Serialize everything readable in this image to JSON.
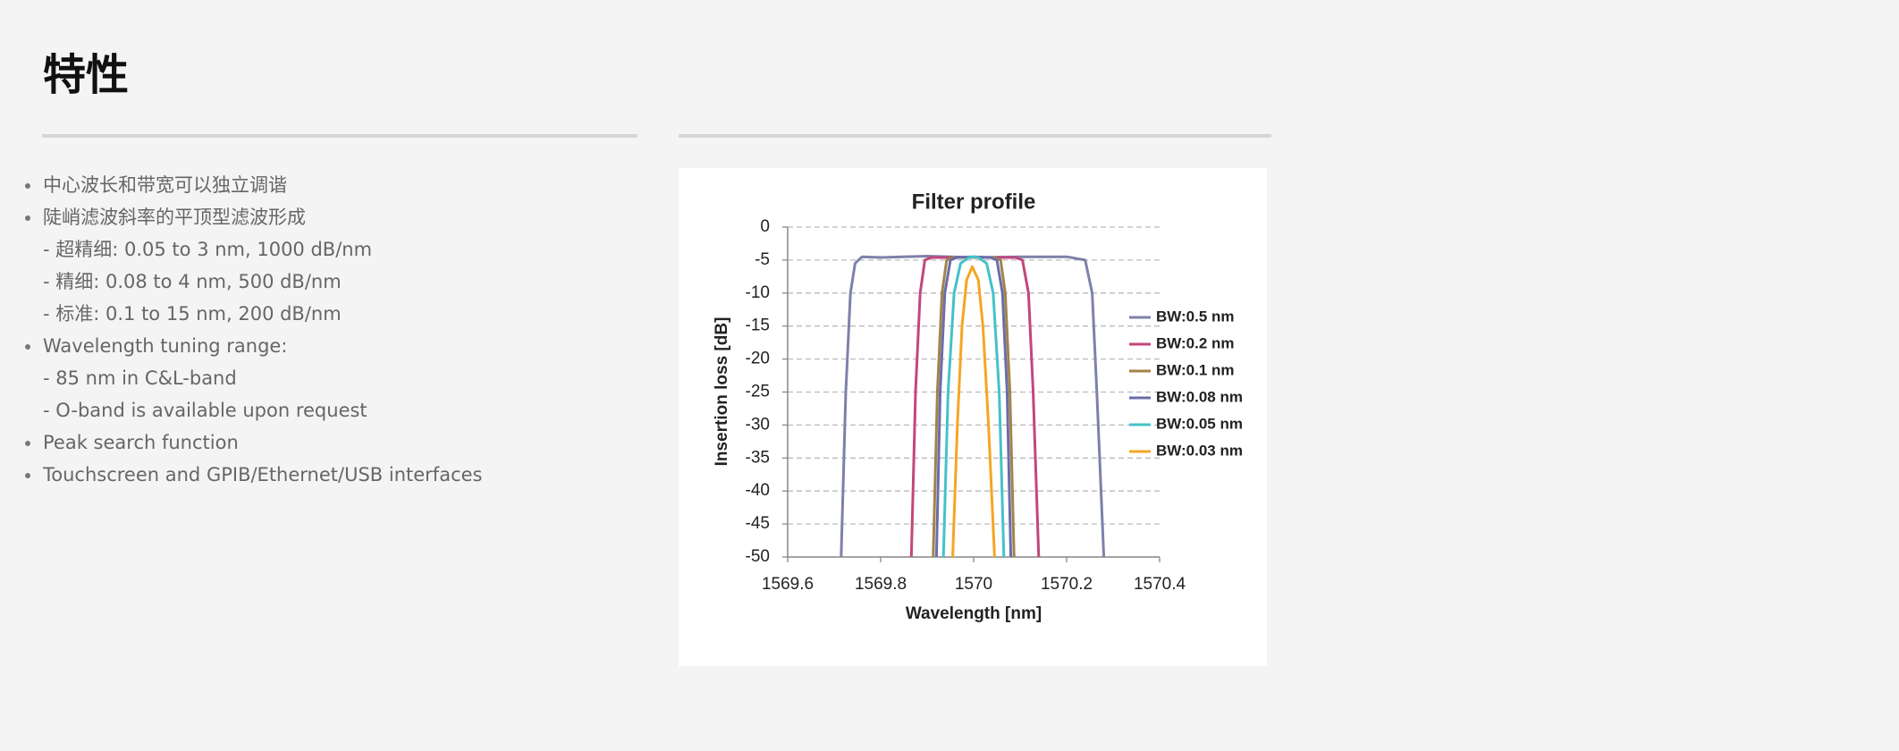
{
  "header": {
    "title": "特性"
  },
  "features": [
    {
      "text": "中心波长和带宽可以独立调谐",
      "details": []
    },
    {
      "text": "陡峭滤波斜率的平顶型滤波形成",
      "details": [
        "- 超精细: 0.05 to 3 nm, 1000 dB/nm",
        "- 精细: 0.08 to 4 nm, 500 dB/nm",
        "- 标准: 0.1 to 15 nm, 200 dB/nm"
      ]
    },
    {
      "text": "Wavelength tuning range:",
      "details": [
        "- 85 nm in C&L-band",
        "- O-band is available upon request"
      ]
    },
    {
      "text": "Peak search function",
      "details": []
    },
    {
      "text": "Touchscreen and GPIB/Ethernet/USB interfaces",
      "details": []
    }
  ],
  "chart_data": {
    "type": "line",
    "title": "Filter profile",
    "x_label": "Wavelength [nm]",
    "y_label": "Insertion loss [dB]",
    "xlim": [
      1569.6,
      1570.4
    ],
    "xticks": [
      1569.6,
      1569.8,
      1570,
      1570.2,
      1570.4
    ],
    "ylim": [
      -50,
      0
    ],
    "yticks": [
      0,
      -5,
      -10,
      -15,
      -20,
      -25,
      -30,
      -35,
      -40,
      -45,
      -50
    ],
    "grid": true,
    "legend": "right",
    "series": [
      {
        "name": "BW:0.5 nm",
        "color": "#7d81a9",
        "x": [
          1569.715,
          1569.725,
          1569.735,
          1569.745,
          1569.76,
          1569.8,
          1569.9,
          1570,
          1570.1,
          1570.2,
          1570.24,
          1570.255,
          1570.265,
          1570.28
        ],
        "values": [
          -50,
          -25,
          -10,
          -5.5,
          -4.5,
          -4.6,
          -4.4,
          -4.6,
          -4.5,
          -4.5,
          -5,
          -10,
          -25,
          -50
        ]
      },
      {
        "name": "BW:0.2 nm",
        "color": "#c2467c",
        "x": [
          1569.866,
          1569.875,
          1569.885,
          1569.895,
          1569.91,
          1570,
          1570.09,
          1570.105,
          1570.118,
          1570.128,
          1570.14
        ],
        "values": [
          -50,
          -25,
          -10,
          -5,
          -4.6,
          -4.6,
          -4.6,
          -5,
          -10,
          -25,
          -50
        ]
      },
      {
        "name": "BW:0.1 nm",
        "color": "#a2834a",
        "x": [
          1569.913,
          1569.922,
          1569.932,
          1569.942,
          1569.955,
          1570,
          1570.045,
          1570.058,
          1570.068,
          1570.078,
          1570.087
        ],
        "values": [
          -50,
          -25,
          -10,
          -5,
          -4.6,
          -4.6,
          -4.6,
          -5,
          -10,
          -25,
          -50
        ]
      },
      {
        "name": "BW:0.08 nm",
        "color": "#6a6da9",
        "x": [
          1569.92,
          1569.928,
          1569.938,
          1569.95,
          1569.965,
          1570,
          1570.035,
          1570.05,
          1570.062,
          1570.072,
          1570.08
        ],
        "values": [
          -50,
          -25,
          -10,
          -5,
          -4.6,
          -4.5,
          -4.6,
          -5,
          -10,
          -25,
          -50
        ]
      },
      {
        "name": "BW:0.05 nm",
        "color": "#45c1c9",
        "x": [
          1569.935,
          1569.945,
          1569.958,
          1569.972,
          1569.99,
          1570,
          1570.01,
          1570.028,
          1570.042,
          1570.055,
          1570.065
        ],
        "values": [
          -50,
          -25,
          -10,
          -5.5,
          -4.6,
          -4.5,
          -4.6,
          -5.5,
          -10,
          -25,
          -50
        ]
      },
      {
        "name": "BW:0.03 nm",
        "color": "#f5a623",
        "x": [
          1569.955,
          1569.965,
          1569.975,
          1569.985,
          1569.997,
          1570.01,
          1570.02,
          1570.032,
          1570.045
        ],
        "values": [
          -50,
          -30,
          -15,
          -8,
          -6,
          -8,
          -15,
          -30,
          -50
        ]
      }
    ]
  }
}
